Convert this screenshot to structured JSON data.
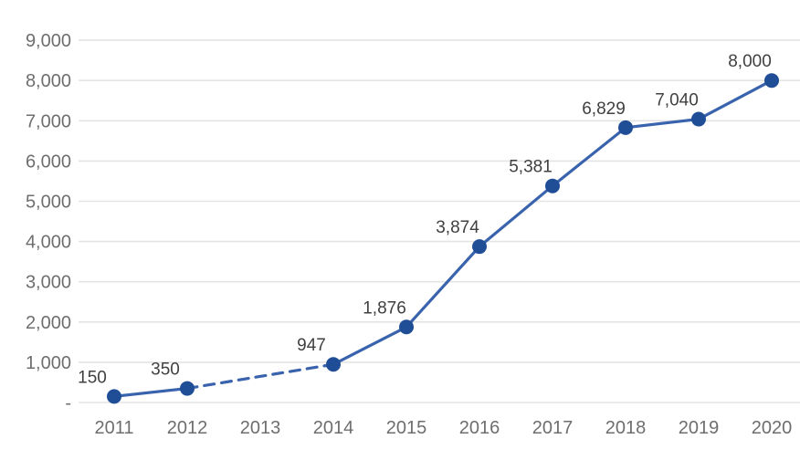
{
  "chart_data": {
    "type": "line",
    "title": "",
    "xlabel": "",
    "ylabel": "",
    "x": [
      "2011",
      "2012",
      "2013",
      "2014",
      "2015",
      "2016",
      "2017",
      "2018",
      "2019",
      "2020"
    ],
    "series": [
      {
        "name": "values",
        "values": [
          150,
          350,
          null,
          947,
          1876,
          3874,
          5381,
          6829,
          7040,
          8000
        ],
        "point_labels": [
          "150",
          "350",
          "",
          "947",
          "1,876",
          "3,874",
          "5,381",
          "6,829",
          "7,040",
          "8,000"
        ]
      }
    ],
    "dashed_segment": {
      "from_x": "2012",
      "to_x": "2014",
      "note": "no marker or label at 2013"
    },
    "ylim": [
      0,
      9000
    ],
    "ytick_step": 1000,
    "ytick_labels": [
      "-",
      "1,000",
      "2,000",
      "3,000",
      "4,000",
      "5,000",
      "6,000",
      "7,000",
      "8,000",
      "9,000"
    ],
    "grid": true,
    "legend": false,
    "colors": {
      "line": "#3a63ad",
      "marker": "#1f4e97",
      "grid": "#e4e4e4",
      "axis_text": "#6e6e6e",
      "label_text": "#404040",
      "background": "#ffffff"
    }
  }
}
